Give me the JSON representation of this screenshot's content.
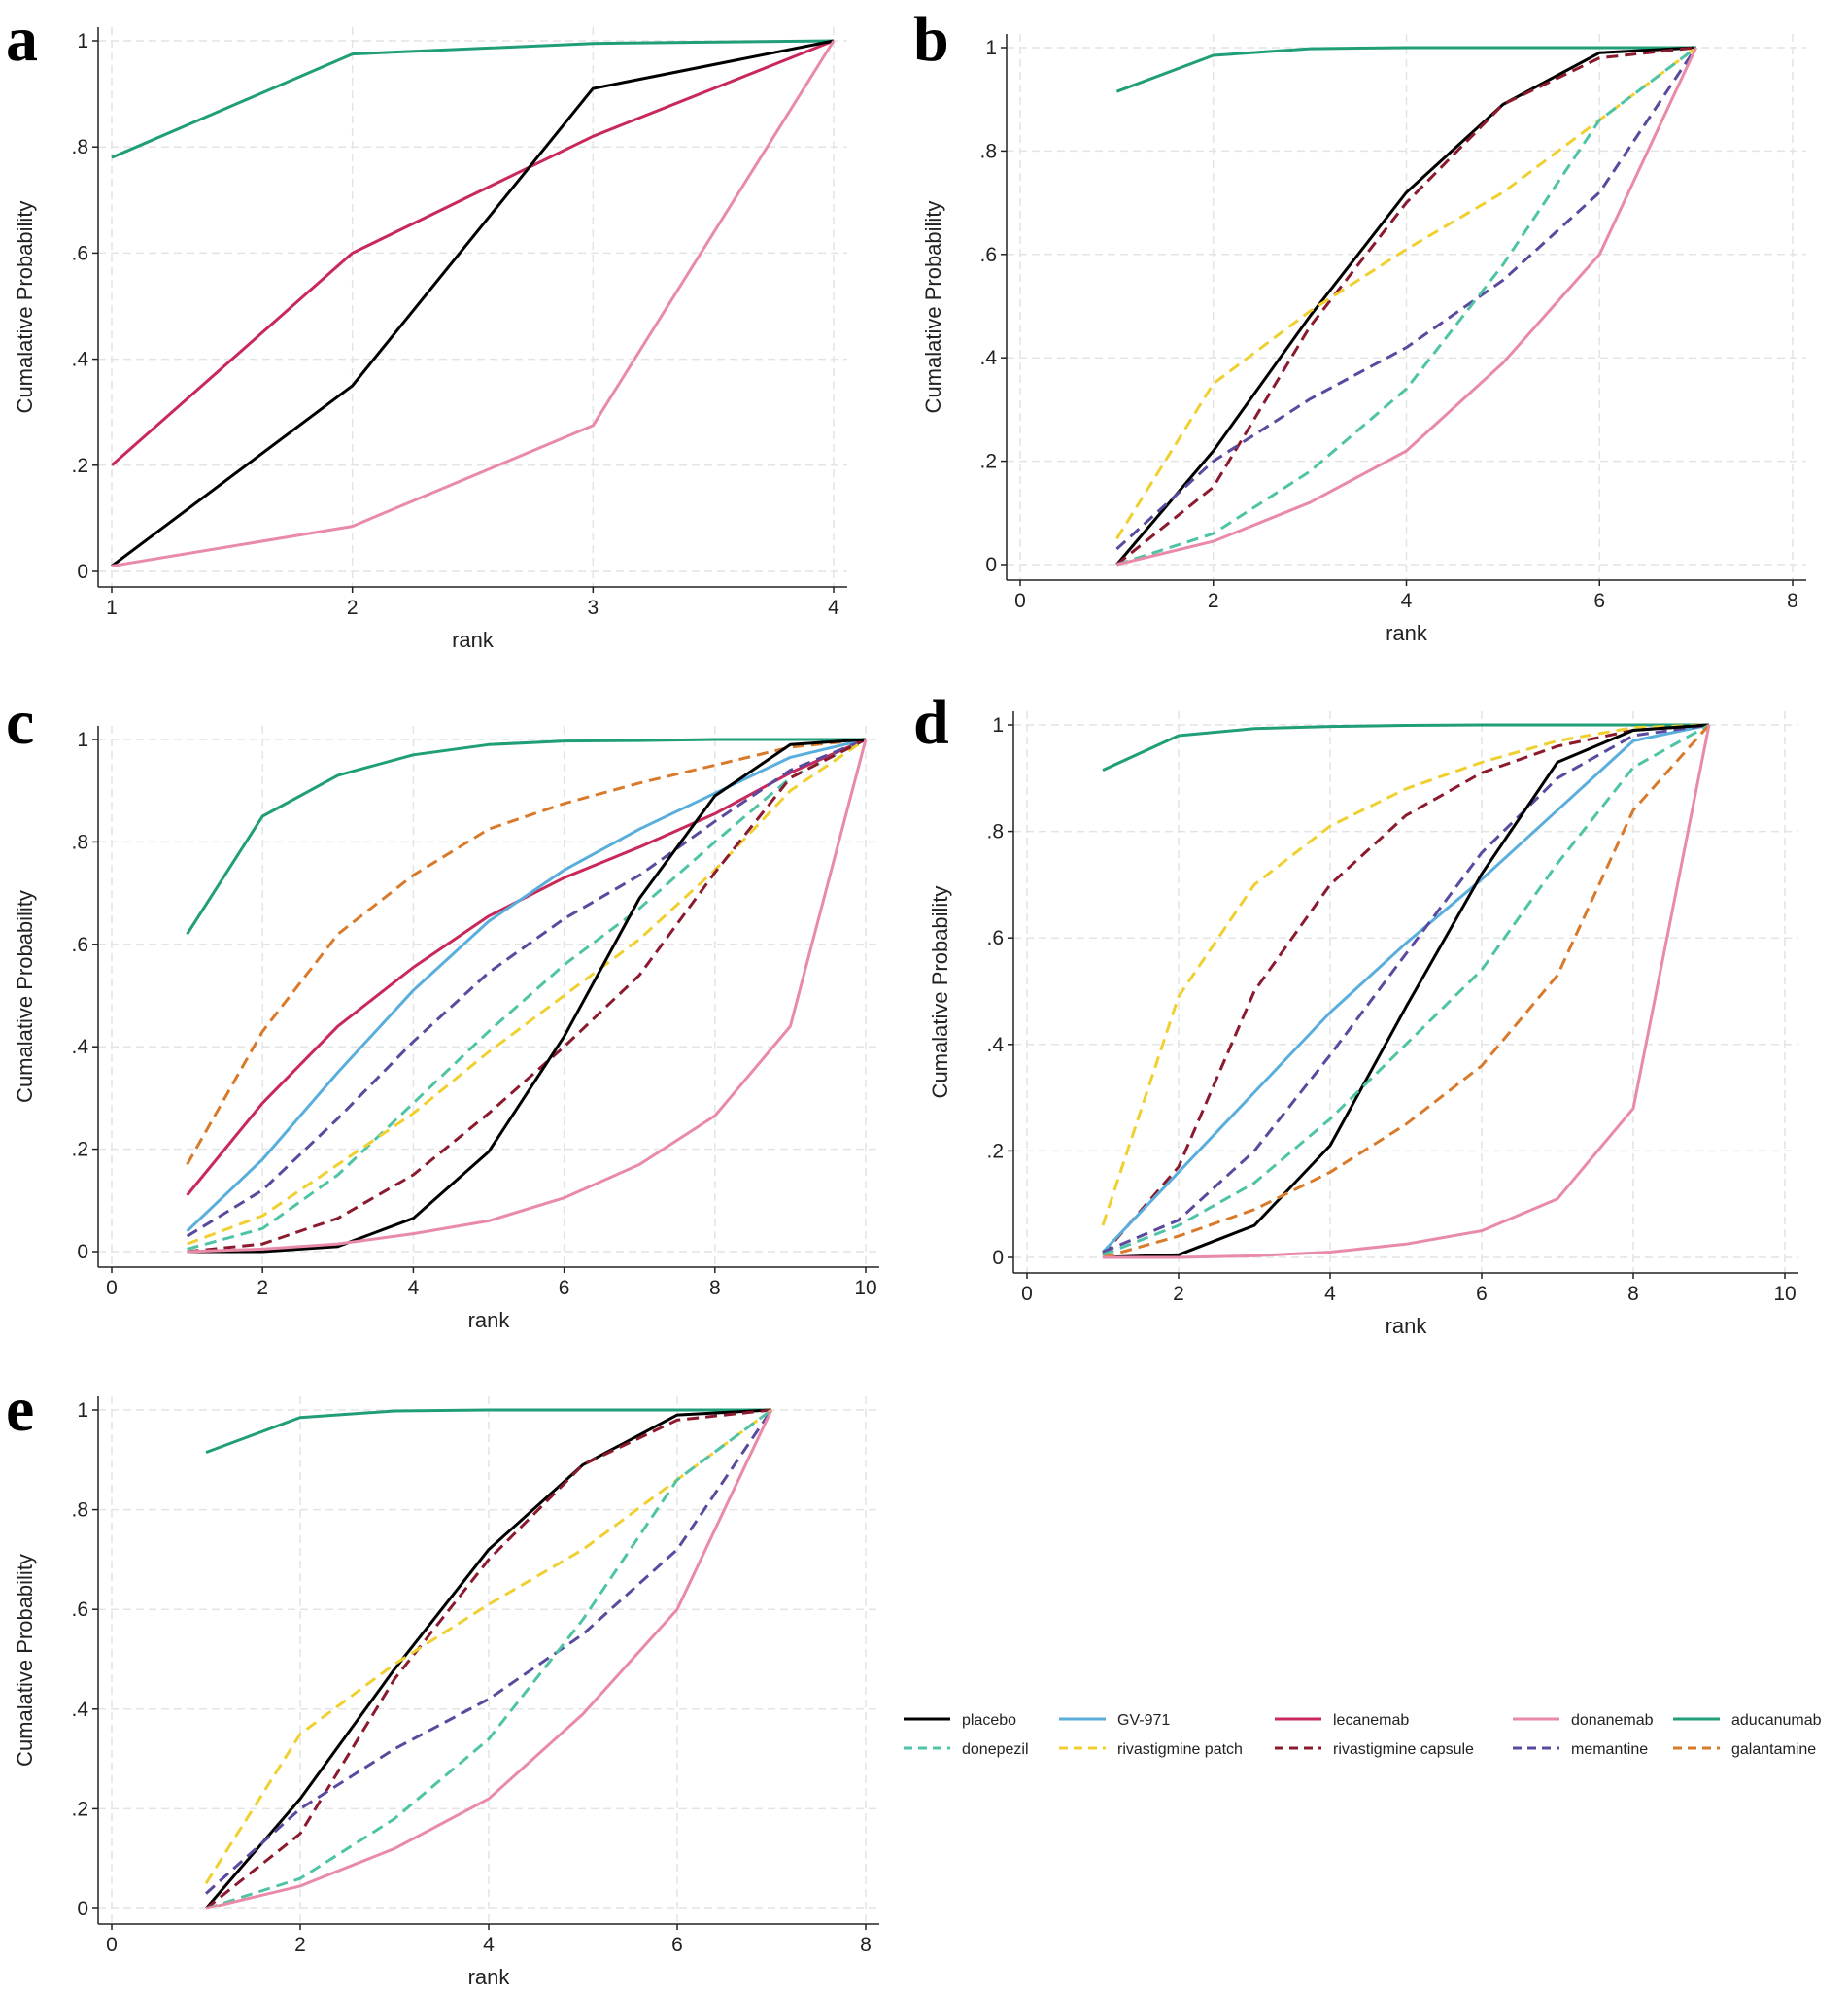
{
  "legend": [
    {
      "name": "placebo",
      "color": "#000000",
      "dash": false
    },
    {
      "name": "GV-971",
      "color": "#5aaedc",
      "dash": false
    },
    {
      "name": "lecanemab",
      "color": "#c8285a",
      "dash": false
    },
    {
      "name": "donanemab",
      "color": "#e88aa8",
      "dash": false
    },
    {
      "name": "aducanumab",
      "color": "#1f9e78",
      "dash": false
    },
    {
      "name": "donepezil",
      "color": "#4fc3a6",
      "dash": true
    },
    {
      "name": "rivastigmine patch",
      "color": "#f0d030",
      "dash": true
    },
    {
      "name": "rivastigmine capsule",
      "color": "#8b1a2e",
      "dash": true
    },
    {
      "name": "memantine",
      "color": "#5a4a9e",
      "dash": true
    },
    {
      "name": "galantamine",
      "color": "#d87a2a",
      "dash": true
    }
  ],
  "chart_data": [
    {
      "panel": "a",
      "type": "line",
      "xlabel": "rank",
      "ylabel": "Cumalative Probability",
      "xlim": [
        1,
        4
      ],
      "ylim": [
        0,
        1
      ],
      "xticks": [
        1,
        2,
        3,
        4
      ],
      "yticks": [
        0,
        0.2,
        0.4,
        0.6,
        0.8,
        1
      ],
      "ytick_labels": [
        "0",
        ".2",
        ".4",
        ".6",
        ".8",
        "1"
      ],
      "grid": true,
      "x": [
        1,
        2,
        3,
        4
      ],
      "series": [
        {
          "name": "aducanumab",
          "values": [
            0.78,
            0.975,
            0.995,
            1
          ]
        },
        {
          "name": "lecanemab",
          "values": [
            0.2,
            0.6,
            0.82,
            1
          ]
        },
        {
          "name": "placebo",
          "values": [
            0.01,
            0.35,
            0.91,
            1
          ]
        },
        {
          "name": "donanemab",
          "values": [
            0.01,
            0.085,
            0.275,
            1
          ]
        }
      ]
    },
    {
      "panel": "b",
      "type": "line",
      "xlabel": "rank",
      "ylabel": "Cumalative Probability",
      "xlim": [
        0,
        8
      ],
      "ylim": [
        0,
        1
      ],
      "xticks": [
        0,
        2,
        4,
        6,
        8
      ],
      "yticks": [
        0,
        0.2,
        0.4,
        0.6,
        0.8,
        1
      ],
      "ytick_labels": [
        "0",
        ".2",
        ".4",
        ".6",
        ".8",
        "1"
      ],
      "grid": true,
      "x": [
        1,
        2,
        3,
        4,
        5,
        6,
        7
      ],
      "series": [
        {
          "name": "aducanumab",
          "values": [
            0.915,
            0.985,
            0.998,
            1,
            1,
            1,
            1
          ]
        },
        {
          "name": "placebo",
          "values": [
            0,
            0.22,
            0.48,
            0.72,
            0.89,
            0.99,
            1
          ]
        },
        {
          "name": "rivastigmine capsule",
          "values": [
            0,
            0.15,
            0.46,
            0.7,
            0.89,
            0.98,
            1
          ]
        },
        {
          "name": "rivastigmine patch",
          "values": [
            0.05,
            0.35,
            0.49,
            0.61,
            0.72,
            0.86,
            1
          ]
        },
        {
          "name": "memantine",
          "values": [
            0.03,
            0.2,
            0.32,
            0.42,
            0.55,
            0.72,
            1
          ]
        },
        {
          "name": "donepezil",
          "values": [
            0,
            0.06,
            0.18,
            0.34,
            0.58,
            0.86,
            1
          ]
        },
        {
          "name": "donanemab",
          "values": [
            0,
            0.045,
            0.12,
            0.22,
            0.39,
            0.6,
            1
          ]
        }
      ]
    },
    {
      "panel": "c",
      "type": "line",
      "xlabel": "rank",
      "ylabel": "Cumalative Probability",
      "xlim": [
        0,
        10
      ],
      "ylim": [
        0,
        1
      ],
      "xticks": [
        0,
        2,
        4,
        6,
        8,
        10
      ],
      "yticks": [
        0,
        0.2,
        0.4,
        0.6,
        0.8,
        1
      ],
      "ytick_labels": [
        "0",
        ".2",
        ".4",
        ".6",
        ".8",
        "1"
      ],
      "grid": true,
      "x": [
        1,
        2,
        3,
        4,
        5,
        6,
        7,
        8,
        9,
        10
      ],
      "series": [
        {
          "name": "aducanumab",
          "values": [
            0.62,
            0.85,
            0.93,
            0.97,
            0.99,
            0.997,
            0.998,
            1,
            1,
            1
          ]
        },
        {
          "name": "galantamine",
          "values": [
            0.17,
            0.43,
            0.62,
            0.735,
            0.825,
            0.875,
            0.915,
            0.95,
            0.985,
            1
          ]
        },
        {
          "name": "lecanemab",
          "values": [
            0.11,
            0.29,
            0.44,
            0.555,
            0.655,
            0.73,
            0.79,
            0.855,
            0.935,
            1
          ]
        },
        {
          "name": "GV-971",
          "values": [
            0.04,
            0.18,
            0.35,
            0.51,
            0.645,
            0.745,
            0.825,
            0.895,
            0.965,
            1
          ]
        },
        {
          "name": "memantine",
          "values": [
            0.03,
            0.12,
            0.26,
            0.41,
            0.545,
            0.65,
            0.735,
            0.84,
            0.94,
            1
          ]
        },
        {
          "name": "donepezil",
          "values": [
            0.005,
            0.045,
            0.15,
            0.29,
            0.43,
            0.56,
            0.67,
            0.8,
            0.925,
            1
          ]
        },
        {
          "name": "rivastigmine patch",
          "values": [
            0.015,
            0.07,
            0.17,
            0.27,
            0.39,
            0.5,
            0.61,
            0.745,
            0.9,
            1
          ]
        },
        {
          "name": "rivastigmine capsule",
          "values": [
            0,
            0.015,
            0.065,
            0.15,
            0.27,
            0.4,
            0.54,
            0.74,
            0.925,
            1
          ]
        },
        {
          "name": "placebo",
          "values": [
            0,
            0,
            0.01,
            0.065,
            0.195,
            0.42,
            0.69,
            0.89,
            0.99,
            1
          ]
        },
        {
          "name": "donanemab",
          "values": [
            0,
            0.005,
            0.015,
            0.035,
            0.06,
            0.105,
            0.17,
            0.265,
            0.44,
            1
          ]
        }
      ]
    },
    {
      "panel": "d",
      "type": "line",
      "xlabel": "rank",
      "ylabel": "Cumalative Probability",
      "xlim": [
        0,
        10
      ],
      "ylim": [
        0,
        1
      ],
      "xticks": [
        0,
        2,
        4,
        6,
        8,
        10
      ],
      "yticks": [
        0,
        0.2,
        0.4,
        0.6,
        0.8,
        1
      ],
      "ytick_labels": [
        "0",
        ".2",
        ".4",
        ".6",
        ".8",
        "1"
      ],
      "grid": true,
      "x": [
        1,
        2,
        3,
        4,
        5,
        6,
        7,
        8,
        9
      ],
      "series": [
        {
          "name": "aducanumab",
          "values": [
            0.915,
            0.98,
            0.993,
            0.997,
            0.999,
            1,
            1,
            1,
            1
          ]
        },
        {
          "name": "rivastigmine patch",
          "values": [
            0.06,
            0.49,
            0.7,
            0.81,
            0.88,
            0.93,
            0.97,
            0.995,
            1
          ]
        },
        {
          "name": "rivastigmine capsule",
          "values": [
            0.005,
            0.17,
            0.5,
            0.7,
            0.83,
            0.91,
            0.96,
            0.99,
            1
          ]
        },
        {
          "name": "GV-971",
          "values": [
            0.01,
            0.16,
            0.31,
            0.46,
            0.59,
            0.71,
            0.84,
            0.97,
            1
          ]
        },
        {
          "name": "memantine",
          "values": [
            0.01,
            0.07,
            0.2,
            0.38,
            0.57,
            0.76,
            0.9,
            0.98,
            1
          ]
        },
        {
          "name": "placebo",
          "values": [
            0,
            0.005,
            0.06,
            0.21,
            0.47,
            0.72,
            0.93,
            0.99,
            1
          ]
        },
        {
          "name": "donepezil",
          "values": [
            0.005,
            0.06,
            0.14,
            0.26,
            0.4,
            0.54,
            0.74,
            0.92,
            1
          ]
        },
        {
          "name": "galantamine",
          "values": [
            0,
            0.04,
            0.09,
            0.16,
            0.25,
            0.36,
            0.53,
            0.84,
            1
          ]
        },
        {
          "name": "donanemab",
          "values": [
            0,
            0,
            0.003,
            0.01,
            0.025,
            0.05,
            0.11,
            0.28,
            1
          ]
        }
      ]
    },
    {
      "panel": "e",
      "type": "line",
      "xlabel": "rank",
      "ylabel": "Cumalative Probability",
      "xlim": [
        0,
        8
      ],
      "ylim": [
        0,
        1
      ],
      "xticks": [
        0,
        2,
        4,
        6,
        8
      ],
      "yticks": [
        0,
        0.2,
        0.4,
        0.6,
        0.8,
        1
      ],
      "ytick_labels": [
        "0",
        ".2",
        ".4",
        ".6",
        ".8",
        "1"
      ],
      "grid": true,
      "x": [
        1,
        2,
        3,
        4,
        5,
        6,
        7
      ],
      "series": [
        {
          "name": "aducanumab",
          "values": [
            0.915,
            0.985,
            0.998,
            1,
            1,
            1,
            1
          ]
        },
        {
          "name": "placebo",
          "values": [
            0,
            0.22,
            0.48,
            0.72,
            0.89,
            0.99,
            1
          ]
        },
        {
          "name": "rivastigmine capsule",
          "values": [
            0,
            0.15,
            0.46,
            0.7,
            0.89,
            0.98,
            1
          ]
        },
        {
          "name": "rivastigmine patch",
          "values": [
            0.05,
            0.35,
            0.49,
            0.61,
            0.72,
            0.86,
            1
          ]
        },
        {
          "name": "memantine",
          "values": [
            0.03,
            0.2,
            0.32,
            0.42,
            0.55,
            0.72,
            1
          ]
        },
        {
          "name": "donepezil",
          "values": [
            0,
            0.06,
            0.18,
            0.34,
            0.58,
            0.86,
            1
          ]
        },
        {
          "name": "donanemab",
          "values": [
            0,
            0.045,
            0.12,
            0.22,
            0.39,
            0.6,
            1
          ]
        }
      ]
    }
  ]
}
